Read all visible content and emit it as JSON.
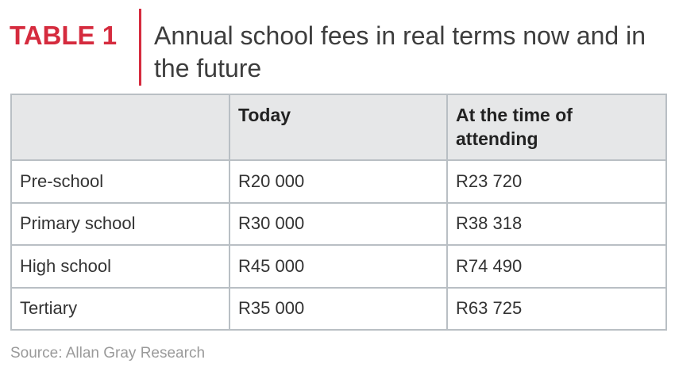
{
  "title": {
    "label": "TABLE 1",
    "text": "Annual school fees in real terms now and in the future",
    "accent_color": "#d52b3e"
  },
  "table": {
    "headers": [
      "",
      "Today",
      "At the time of attending"
    ],
    "rows": [
      [
        "Pre-school",
        "R20 000",
        "R23 720"
      ],
      [
        "Primary school",
        "R30 000",
        "R38 318"
      ],
      [
        "High school",
        "R45 000",
        "R74 490"
      ],
      [
        "Tertiary",
        "R35 000",
        "R63 725"
      ]
    ],
    "header_background": "#e6e7e8",
    "border_color": "#b9bfc4"
  },
  "source": "Source: Allan Gray Research"
}
